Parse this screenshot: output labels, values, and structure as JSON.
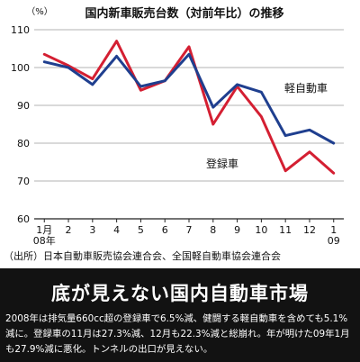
{
  "chart_data": {
    "type": "line",
    "title": "国内新車販売台数（対前年比）の推移",
    "ylabel": "（%）",
    "ylim": [
      60,
      110
    ],
    "yticks": [
      60,
      70,
      80,
      90,
      100,
      110
    ],
    "categories": [
      "1月\n08年",
      "2",
      "3",
      "4",
      "5",
      "6",
      "7",
      "8",
      "9",
      "10",
      "11",
      "12",
      "1\n09"
    ],
    "series": [
      {
        "name": "軽自動車",
        "color": "#1f3f8f",
        "values": [
          101.5,
          100,
          95.5,
          103,
          95,
          96.5,
          103.5,
          89.5,
          95.5,
          93.5,
          82,
          83.5,
          80
        ]
      },
      {
        "name": "登録車",
        "color": "#d41f32",
        "values": [
          103.5,
          100.5,
          97,
          107,
          94,
          96.5,
          105.5,
          85,
          95,
          87,
          72.7,
          77.7,
          72.1
        ]
      }
    ],
    "grid": "horizontal",
    "source": "（出所）日本自動車販売協会連合会、全国軽自動車協会連合会"
  },
  "headline": "底が見えない国内自動車市場",
  "body": "2008年は排気量660cc超の登録車で6.5%減、健闘する軽自動車を含めても5.1%減に。登録車の11月は27.3%減、12月も22.3%減と総崩れ。年が明けた09年1月も27.9%減に悪化。トンネルの出口が見えない。"
}
